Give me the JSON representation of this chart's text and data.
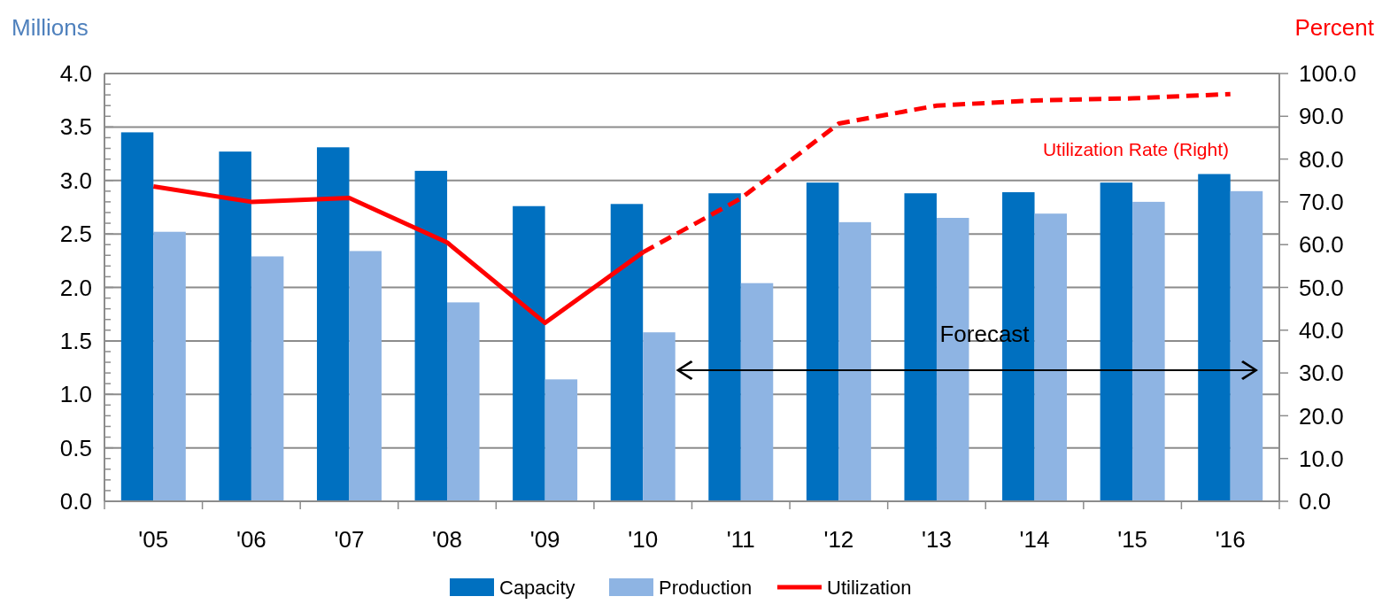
{
  "chart_data": {
    "type": "bar",
    "categories": [
      "'05",
      "'06",
      "'07",
      "'08",
      "'09",
      "'10",
      "'11",
      "'12",
      "'13",
      "'14",
      "'15",
      "'16"
    ],
    "ylabel": "Millions",
    "y2label": "Percent",
    "ylim": [
      0,
      4
    ],
    "yticks": [
      "0.0",
      {
        "value": 0.1,
        "label": null
      },
      {
        "value": 0.2,
        "label": null
      },
      {
        "value": 0.3,
        "label": null
      },
      {
        "value": 0.4,
        "label": null
      },
      {
        "value": 0.5,
        "label": "0.5"
      },
      {
        "value": 0.6,
        "label": null
      },
      {
        "value": 0.7,
        "label": null
      },
      {
        "value": 0.8,
        "label": null
      },
      {
        "value": 0.9,
        "label": null
      },
      {
        "value": 1,
        "label": "1.0"
      },
      {
        "value": 1.1,
        "label": null
      },
      {
        "value": 1.2,
        "label": null
      },
      {
        "value": 1.3,
        "label": null
      },
      {
        "value": 1.4,
        "label": null
      },
      {
        "value": 1.5,
        "label": "1.5"
      },
      {
        "value": 1.6,
        "label": null
      },
      {
        "value": 1.7,
        "label": null
      },
      {
        "value": 1.8,
        "label": null
      },
      {
        "value": 1.9,
        "label": null
      },
      {
        "value": 2,
        "label": "2.0"
      },
      {
        "value": 2.1,
        "label": null
      },
      {
        "value": 2.2,
        "label": null
      },
      {
        "value": 2.3,
        "label": null
      },
      {
        "value": 2.4,
        "label": null
      },
      {
        "value": 2.5,
        "label": "2.5"
      },
      {
        "value": 2.6,
        "label": null
      },
      {
        "value": 2.7,
        "label": null
      },
      {
        "value": 2.8,
        "label": null
      },
      {
        "value": 2.9,
        "label": null
      },
      {
        "value": 3,
        "label": "3.0"
      },
      {
        "value": 3.1,
        "label": null
      },
      {
        "value": 3.2,
        "label": null
      },
      {
        "value": 3.3,
        "label": null
      },
      {
        "value": 3.4,
        "label": null
      },
      {
        "value": 3.5,
        "label": "3.5"
      },
      {
        "value": 3.6,
        "label": null
      },
      {
        "value": 3.7,
        "label": null
      },
      {
        "value": 3.8,
        "label": null
      },
      {
        "value": 3.9,
        "label": null
      },
      {
        "value": 4,
        "label": "4.0"
      }
    ],
    "y2lim": [
      0,
      100
    ],
    "y2ticks": [
      {
        "value": 0,
        "label": "0.0"
      },
      {
        "value": 10,
        "label": "10.0"
      },
      {
        "value": 20,
        "label": "20.0"
      },
      {
        "value": 30,
        "label": "30.0"
      },
      {
        "value": 40,
        "label": "40.0"
      },
      {
        "value": 50,
        "label": "50.0"
      },
      {
        "value": 60,
        "label": "60.0"
      },
      {
        "value": 70,
        "label": "70.0"
      },
      {
        "value": 80,
        "label": "80.0"
      },
      {
        "value": 90,
        "label": "90.0"
      },
      {
        "value": 100,
        "label": "100.0"
      }
    ],
    "grid": "y",
    "legend": "bottom",
    "marker": "none",
    "series": [
      {
        "name": "Capacity",
        "color": "#0070c0",
        "values": [
          3.45,
          3.27,
          3.31,
          3.09,
          2.76,
          2.78,
          2.88,
          2.98,
          2.88,
          2.89,
          2.98,
          3.06
        ]
      },
      {
        "name": "Production",
        "color": "#8eb4e3",
        "values": [
          2.52,
          2.29,
          2.34,
          1.86,
          1.14,
          1.58,
          2.04,
          2.61,
          2.65,
          2.69,
          2.8,
          2.9
        ]
      },
      {
        "name": "Utilization",
        "type": "line",
        "axis": "y2",
        "color": "#ff0000",
        "line_style": "solid",
        "values": [
          73.6,
          70.0,
          70.9,
          60.5,
          41.7,
          58.2,
          null,
          null,
          null,
          null,
          null,
          null
        ]
      },
      {
        "type": "line",
        "axis": "y2",
        "color": "#ff0000",
        "line_style": "dashed",
        "values": [
          null,
          null,
          null,
          null,
          null,
          58.2,
          70.8,
          88.3,
          92.5,
          93.7,
          94.2,
          95.2
        ]
      }
    ],
    "annotations": [
      "Utilization Rate (Right)",
      "Forecast"
    ]
  }
}
